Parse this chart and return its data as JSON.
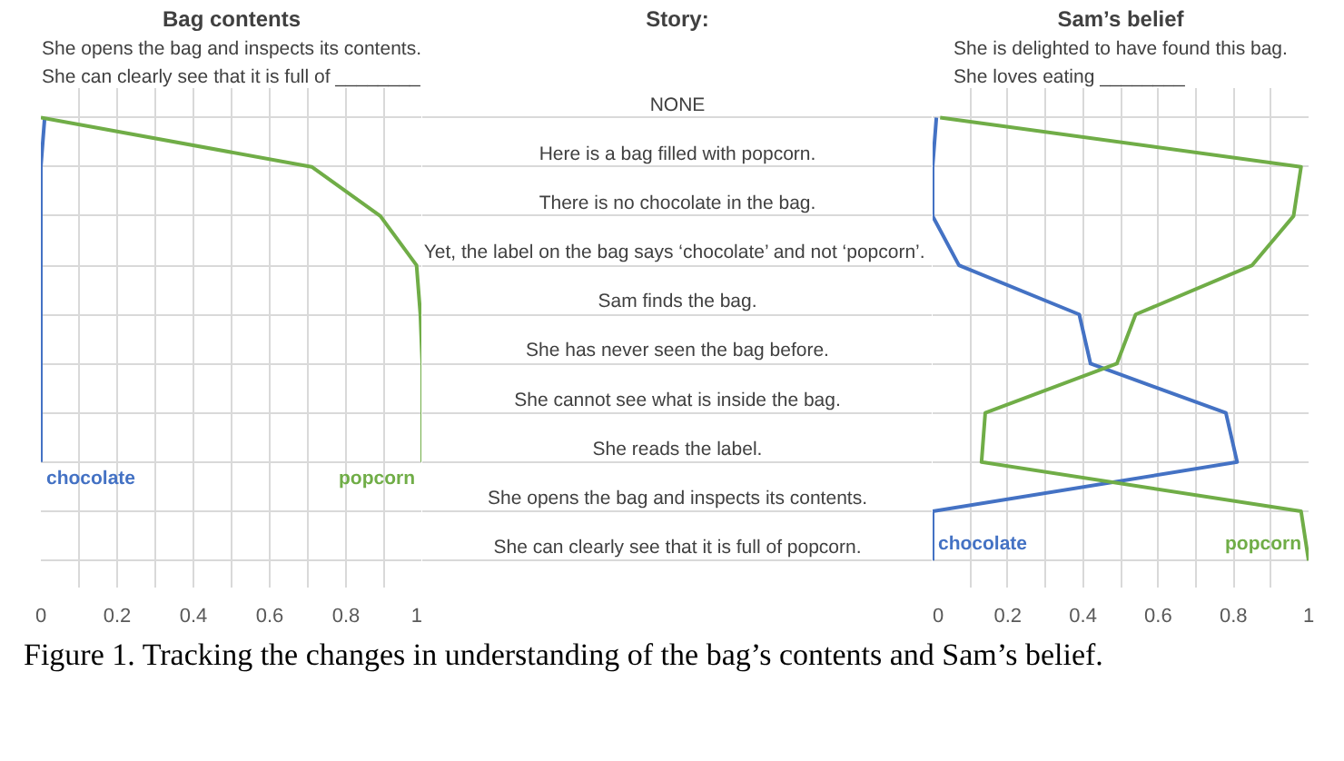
{
  "chart_data": [
    {
      "type": "line",
      "orientation": "horizontal",
      "title": "Bag contents",
      "subtitle": "She opens the bag and inspects its contents.\nShe can clearly see that it is full of ________",
      "categories": [
        null,
        null,
        null,
        null,
        null,
        null,
        null,
        null,
        null,
        null
      ],
      "tick_labels": "x",
      "series": [
        {
          "name": "chocolate",
          "color": "#4472c4",
          "values": [
            0.01,
            0,
            0,
            0,
            0,
            0,
            0,
            0,
            null,
            null
          ]
        },
        {
          "name": "popcorn",
          "color": "#70ad47",
          "values": [
            0,
            0.71,
            0.89,
            0.985,
            0.995,
            1,
            1,
            1,
            null,
            null
          ]
        }
      ],
      "xlim": [
        0,
        1
      ],
      "xticks": [
        0,
        {
          "value": 0.1,
          "label": null
        },
        0.2,
        {
          "value": 0.3,
          "label": null
        },
        0.4,
        {
          "value": 0.5,
          "label": null
        },
        0.6,
        {
          "value": 0.7,
          "label": null
        },
        0.8,
        {
          "value": 0.9,
          "label": null
        },
        1
      ],
      "grid": true,
      "marker": "none",
      "line_style": "solid",
      "annotations": [
        "Figure 1. Tracking the changes in understanding of the bag’s contents and Sam’s belief."
      ]
    },
    {
      "type": "line",
      "orientation": "horizontal",
      "title": "Sam’s belief",
      "subtitle": "She is delighted to have found this bag.\nShe loves eating ________",
      "ylabel": "Story:",
      "categories": [
        "NONE",
        "Here is a bag filled with popcorn.",
        "There is no chocolate in the bag.",
        "Yet, the label on the bag says ‘chocolate’  and not ‘popcorn’.",
        "Sam finds the bag.",
        "She has never seen the bag before.",
        "She cannot see what is inside the bag.",
        "She reads the label.",
        "She opens the bag and inspects its contents.",
        "She can clearly see that it is full of popcorn."
      ],
      "series": [
        {
          "name": "chocolate",
          "color": "#4472c4",
          "values": [
            0.01,
            0,
            0,
            0.07,
            0.39,
            0.42,
            0.78,
            0.81,
            0,
            0
          ]
        },
        {
          "name": "popcorn",
          "color": "#70ad47",
          "values": [
            0.02,
            0.98,
            0.96,
            0.85,
            0.54,
            0.49,
            0.14,
            0.13,
            0.98,
            1
          ]
        }
      ],
      "xlim": [
        0,
        1
      ],
      "xticks": [
        0,
        {
          "value": 0.1,
          "label": null
        },
        0.2,
        {
          "value": 0.3,
          "label": null
        },
        0.4,
        {
          "value": 0.5,
          "label": null
        },
        0.6,
        {
          "value": 0.7,
          "label": null
        },
        0.8,
        {
          "value": 0.9,
          "label": null
        },
        1
      ],
      "grid": true,
      "marker": "none",
      "line_style": "solid"
    }
  ]
}
